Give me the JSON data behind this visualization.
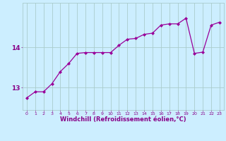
{
  "x": [
    0,
    1,
    2,
    3,
    4,
    5,
    6,
    7,
    8,
    9,
    10,
    11,
    12,
    13,
    14,
    15,
    16,
    17,
    18,
    19,
    20,
    21,
    22,
    23
  ],
  "y": [
    12.75,
    12.9,
    12.9,
    13.1,
    13.4,
    13.6,
    13.85,
    13.87,
    13.87,
    13.87,
    13.87,
    14.05,
    14.2,
    14.22,
    14.32,
    14.35,
    14.55,
    14.58,
    14.58,
    14.72,
    13.85,
    13.88,
    14.55,
    14.62
  ],
  "line_color": "#990099",
  "marker_color": "#990099",
  "bg_color": "#cceeff",
  "grid_color": "#aacccc",
  "axis_color": "#880088",
  "yticks": [
    13,
    14
  ],
  "xticks": [
    0,
    1,
    2,
    3,
    4,
    5,
    6,
    7,
    8,
    9,
    10,
    11,
    12,
    13,
    14,
    15,
    16,
    17,
    18,
    19,
    20,
    21,
    22,
    23
  ],
  "xlabel": "Windchill (Refroidissement éolien,°C)",
  "ylim": [
    12.45,
    15.1
  ],
  "xlim": [
    -0.5,
    23.5
  ]
}
